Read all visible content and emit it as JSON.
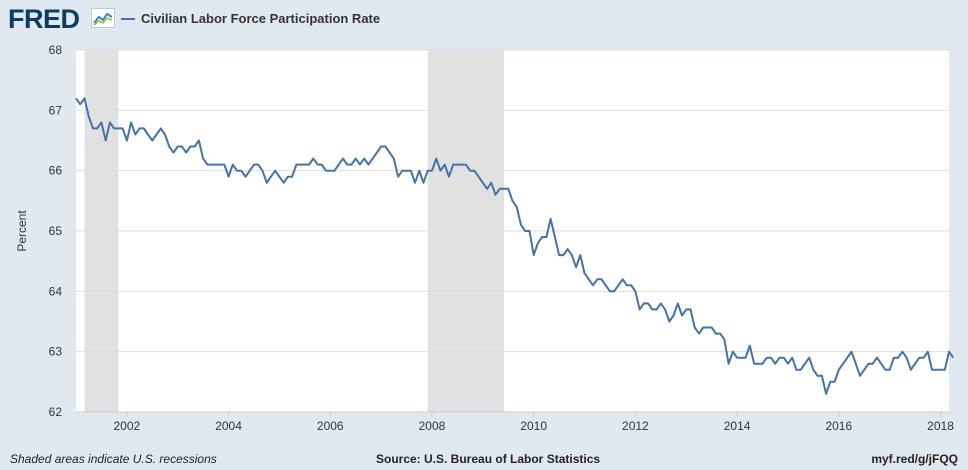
{
  "logo": {
    "text": "FRED",
    "icon": "fred-chart-icon"
  },
  "legend": {
    "label": "Civilian Labor Force Participation Rate",
    "color": "#4572a7"
  },
  "footer": {
    "note": "Shaded areas indicate U.S. recessions",
    "source": "Source: U.S. Bureau of Labor Statistics",
    "link": "myf.red/g/jFQQ"
  },
  "colors": {
    "background": "#e1e9f0",
    "plot": "#ffffff",
    "recession": "#e1e1e1",
    "line": "#4572a7",
    "grid": "#dddddd"
  },
  "chart_data": {
    "type": "line",
    "title": "",
    "xlabel": "",
    "ylabel": "Percent",
    "ylim": [
      62,
      68
    ],
    "yticks": [
      62,
      63,
      64,
      65,
      66,
      67,
      68
    ],
    "xticks": [
      "2002",
      "2004",
      "2006",
      "2008",
      "2010",
      "2012",
      "2014",
      "2016",
      "2018"
    ],
    "x_range": [
      "2001-01",
      "2018-03"
    ],
    "grid": true,
    "recessions": [
      {
        "start": "2001-03",
        "end": "2001-11"
      },
      {
        "start": "2007-12",
        "end": "2009-06"
      }
    ],
    "series": [
      {
        "name": "Civilian Labor Force Participation Rate",
        "start": "2001-01",
        "frequency": "monthly",
        "values": [
          67.2,
          67.1,
          67.2,
          66.9,
          66.7,
          66.7,
          66.8,
          66.5,
          66.8,
          66.7,
          66.7,
          66.7,
          66.5,
          66.8,
          66.6,
          66.7,
          66.7,
          66.6,
          66.5,
          66.6,
          66.7,
          66.6,
          66.4,
          66.3,
          66.4,
          66.4,
          66.3,
          66.4,
          66.4,
          66.5,
          66.2,
          66.1,
          66.1,
          66.1,
          66.1,
          66.1,
          65.9,
          66.1,
          66.0,
          66.0,
          65.9,
          66.0,
          66.1,
          66.1,
          66.0,
          65.8,
          65.9,
          66.0,
          65.9,
          65.8,
          65.9,
          65.9,
          66.1,
          66.1,
          66.1,
          66.1,
          66.2,
          66.1,
          66.1,
          66.0,
          66.0,
          66.0,
          66.1,
          66.2,
          66.1,
          66.1,
          66.2,
          66.1,
          66.2,
          66.1,
          66.2,
          66.3,
          66.4,
          66.4,
          66.3,
          66.2,
          65.9,
          66.0,
          66.0,
          66.0,
          65.8,
          66.0,
          65.8,
          66.0,
          66.0,
          66.2,
          66.0,
          66.1,
          65.9,
          66.1,
          66.1,
          66.1,
          66.1,
          66.0,
          66.0,
          65.9,
          65.8,
          65.7,
          65.8,
          65.6,
          65.7,
          65.7,
          65.7,
          65.5,
          65.4,
          65.1,
          65.0,
          65.0,
          64.6,
          64.8,
          64.9,
          64.9,
          65.2,
          64.9,
          64.6,
          64.6,
          64.7,
          64.6,
          64.4,
          64.6,
          64.3,
          64.2,
          64.1,
          64.2,
          64.2,
          64.1,
          64.0,
          64.0,
          64.1,
          64.2,
          64.1,
          64.1,
          64.0,
          63.7,
          63.8,
          63.8,
          63.7,
          63.7,
          63.8,
          63.7,
          63.5,
          63.6,
          63.8,
          63.6,
          63.7,
          63.7,
          63.4,
          63.3,
          63.4,
          63.4,
          63.4,
          63.3,
          63.3,
          63.2,
          62.8,
          63.0,
          62.9,
          62.9,
          62.9,
          63.1,
          62.8,
          62.8,
          62.8,
          62.9,
          62.9,
          62.8,
          62.9,
          62.9,
          62.8,
          62.9,
          62.7,
          62.7,
          62.8,
          62.9,
          62.7,
          62.6,
          62.6,
          62.3,
          62.5,
          62.5,
          62.7,
          62.8,
          62.9,
          63.0,
          62.8,
          62.6,
          62.7,
          62.8,
          62.8,
          62.9,
          62.8,
          62.7,
          62.7,
          62.9,
          62.9,
          63.0,
          62.9,
          62.7,
          62.8,
          62.9,
          62.9,
          63.0,
          62.7,
          62.7,
          62.7,
          62.7,
          63.0,
          62.9
        ]
      }
    ]
  }
}
